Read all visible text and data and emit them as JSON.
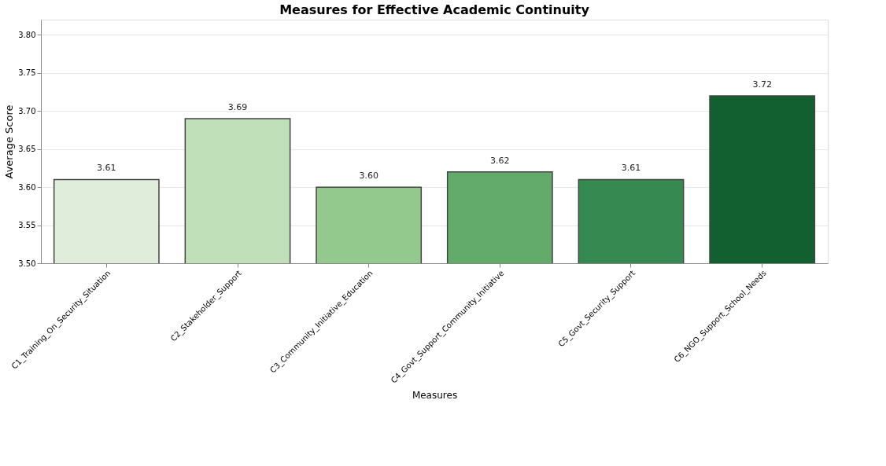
{
  "chart_data": {
    "type": "bar",
    "title": "Measures for Effective Academic Continuity",
    "xlabel": "Measures",
    "ylabel": "Average Score",
    "categories": [
      "C1_Training_On_Security_Situation",
      "C2_Stakeholder_Support",
      "C3_Community_Initiative_Education",
      "C4_Govt_Support_Community_Initiative",
      "C5_Govt_Security_Support",
      "C6_NGO_Support_School_Needs"
    ],
    "values": [
      3.61,
      3.69,
      3.6,
      3.62,
      3.61,
      3.72
    ],
    "colors": [
      "#e0eddb",
      "#bfe0b8",
      "#93c98d",
      "#62ab6a",
      "#368a51",
      "#12602f"
    ],
    "ylim": [
      3.5,
      3.82
    ],
    "yticks": [
      "3.50",
      "3.55",
      "3.60",
      "3.65",
      "3.70",
      "3.75",
      "3.80"
    ],
    "value_labels": [
      "3.61",
      "3.69",
      "3.60",
      "3.62",
      "3.61",
      "3.72"
    ],
    "grid": "y"
  }
}
